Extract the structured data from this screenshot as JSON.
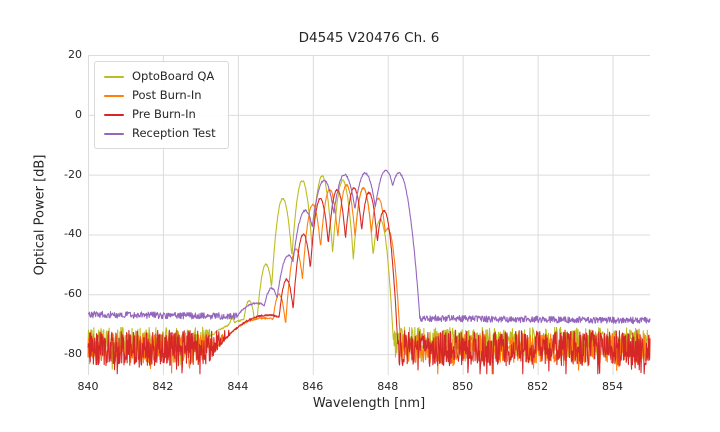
{
  "chart_data": {
    "type": "line",
    "title": "D4545 V20476 Ch. 6",
    "xlabel": "Wavelength [nm]",
    "ylabel": "Optical Power [dB]",
    "xlim": [
      840,
      855
    ],
    "ylim": [
      -87,
      20
    ],
    "x_ticks": [
      840,
      842,
      844,
      846,
      848,
      850,
      852,
      854
    ],
    "y_ticks": [
      20,
      0,
      -20,
      -40,
      -60,
      -80
    ],
    "grid": true,
    "legend_position": "upper left",
    "series": [
      {
        "name": "OptoBoard QA",
        "color": "#bcbd22",
        "noise_floor_db": -76,
        "noise_amp_db": 5,
        "lobe_width_nm": 0.055,
        "peaks": [
          [
            843.85,
            -68
          ],
          [
            844.3,
            -62
          ],
          [
            844.75,
            -50
          ],
          [
            844.5,
            -68,
            0.5
          ],
          [
            845.2,
            -28
          ],
          [
            845.72,
            -22
          ],
          [
            846.25,
            -20.5
          ],
          [
            846.8,
            -22
          ],
          [
            847.35,
            -24.5
          ],
          [
            847.8,
            -35
          ]
        ]
      },
      {
        "name": "Post Burn-In",
        "color": "#ff7f0e",
        "noise_floor_db": -78,
        "noise_amp_db": 5,
        "lobe_width_nm": 0.055,
        "peaks": [
          [
            844.7,
            -68,
            0.4
          ],
          [
            845.1,
            -60
          ],
          [
            845.55,
            -45
          ],
          [
            846.0,
            -30
          ],
          [
            846.45,
            -25
          ],
          [
            846.9,
            -23.5
          ],
          [
            847.35,
            -24.5
          ],
          [
            847.75,
            -28
          ],
          [
            848.0,
            -38
          ]
        ]
      },
      {
        "name": "Pre Burn-In",
        "color": "#d62728",
        "noise_floor_db": -78,
        "noise_amp_db": 6,
        "lobe_width_nm": 0.055,
        "peaks": [
          [
            844.8,
            -67,
            0.4
          ],
          [
            845.3,
            -55
          ],
          [
            845.75,
            -40
          ],
          [
            846.2,
            -28
          ],
          [
            846.65,
            -25
          ],
          [
            847.1,
            -24.5
          ],
          [
            847.5,
            -26
          ],
          [
            847.9,
            -32
          ]
        ]
      },
      {
        "name": "Reception Test",
        "color": "#9467bd",
        "noise_floor_db": -66.8,
        "noise_floor_end_db": -68.8,
        "noise_amp_db": 1.1,
        "lobe_width_nm": 0.08,
        "peaks": [
          [
            844.5,
            -63,
            0.25
          ],
          [
            844.9,
            -58
          ],
          [
            845.35,
            -47
          ],
          [
            845.8,
            -32
          ],
          [
            846.3,
            -22
          ],
          [
            846.85,
            -20
          ],
          [
            847.4,
            -19.5
          ],
          [
            847.95,
            -18.5
          ],
          [
            848.3,
            -19.5
          ]
        ]
      }
    ]
  }
}
